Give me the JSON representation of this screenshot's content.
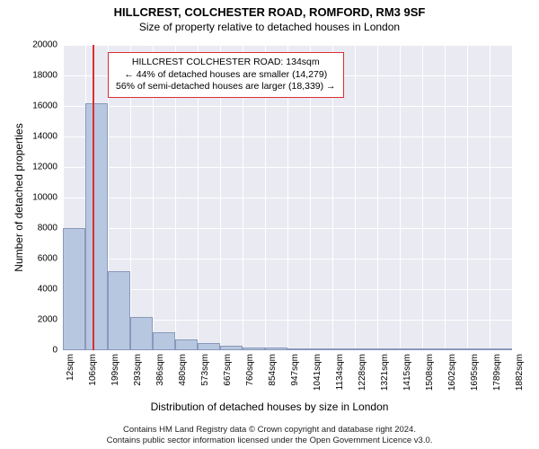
{
  "title": "HILLCREST, COLCHESTER ROAD, ROMFORD, RM3 9SF",
  "subtitle": "Size of property relative to detached houses in London",
  "chart": {
    "type": "histogram",
    "background_color": "#eaeaf2",
    "grid_color": "#ffffff",
    "bar_fill": "#b8c7e0",
    "bar_border": "#8899bb",
    "marker_color": "#d83030",
    "ylabel": "Number of detached properties",
    "xlabel": "Distribution of detached houses by size in London",
    "ylim": [
      0,
      20000
    ],
    "ytick_step": 2000,
    "yticks": [
      0,
      2000,
      4000,
      6000,
      8000,
      10000,
      12000,
      14000,
      16000,
      18000,
      20000
    ],
    "xtick_labels": [
      "12sqm",
      "106sqm",
      "199sqm",
      "293sqm",
      "386sqm",
      "480sqm",
      "573sqm",
      "667sqm",
      "760sqm",
      "854sqm",
      "947sqm",
      "1041sqm",
      "1134sqm",
      "1228sqm",
      "1321sqm",
      "1415sqm",
      "1508sqm",
      "1602sqm",
      "1695sqm",
      "1789sqm",
      "1882sqm"
    ],
    "bar_values": [
      8000,
      16200,
      5200,
      2200,
      1200,
      700,
      500,
      300,
      200,
      150,
      120,
      90,
      70,
      50,
      40,
      30,
      20,
      15,
      10,
      5
    ],
    "marker_sqm": 134,
    "x_min_sqm": 12,
    "x_max_sqm": 1882,
    "title_fontsize": 13,
    "subtitle_fontsize": 12,
    "tick_fontsize": 10,
    "label_fontsize": 12,
    "anno_fontsize": 10.5
  },
  "annotation": {
    "line1": "HILLCREST COLCHESTER ROAD: 134sqm",
    "line2": "← 44% of detached houses are smaller (14,279)",
    "line3": "56% of semi-detached houses are larger (18,339) →",
    "border_color": "#d83030",
    "background": "#ffffff"
  },
  "footer": {
    "line1": "Contains HM Land Registry data © Crown copyright and database right 2024.",
    "line2": "Contains public sector information licensed under the Open Government Licence v3.0."
  }
}
